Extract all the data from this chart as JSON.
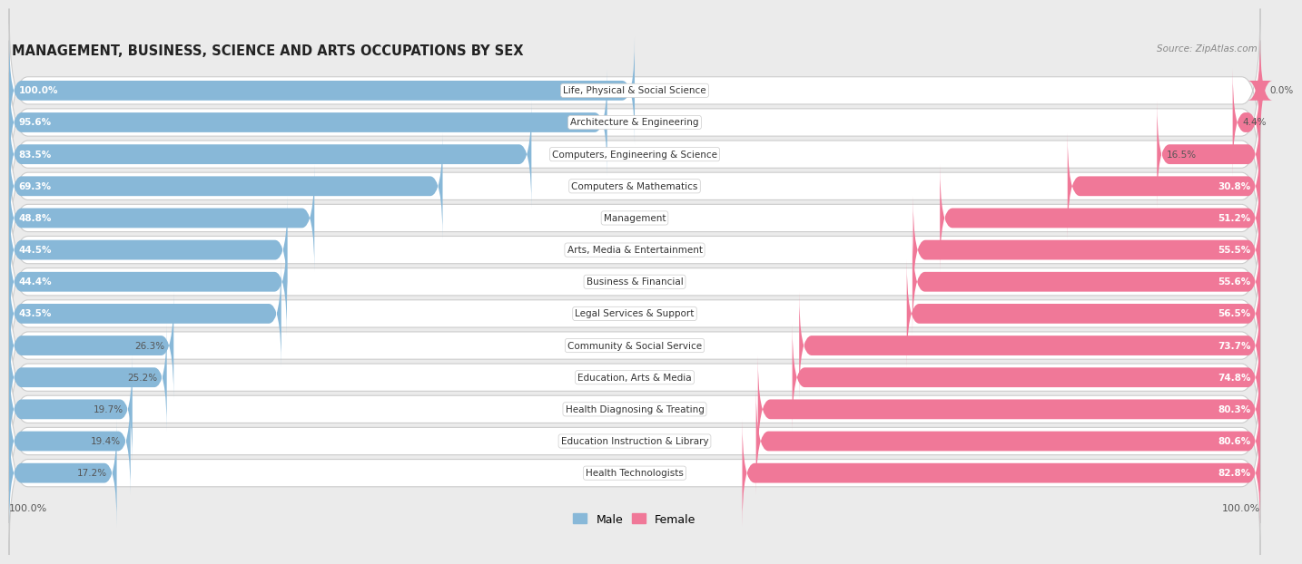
{
  "title": "MANAGEMENT, BUSINESS, SCIENCE AND ARTS OCCUPATIONS BY SEX",
  "source": "Source: ZipAtlas.com",
  "categories": [
    "Life, Physical & Social Science",
    "Architecture & Engineering",
    "Computers, Engineering & Science",
    "Computers & Mathematics",
    "Management",
    "Arts, Media & Entertainment",
    "Business & Financial",
    "Legal Services & Support",
    "Community & Social Service",
    "Education, Arts & Media",
    "Health Diagnosing & Treating",
    "Education Instruction & Library",
    "Health Technologists"
  ],
  "male": [
    100.0,
    95.6,
    83.5,
    69.3,
    48.8,
    44.5,
    44.4,
    43.5,
    26.3,
    25.2,
    19.7,
    19.4,
    17.2
  ],
  "female": [
    0.0,
    4.4,
    16.5,
    30.8,
    51.2,
    55.5,
    55.6,
    56.5,
    73.7,
    74.8,
    80.3,
    80.6,
    82.8
  ],
  "male_color": "#88b8d8",
  "female_color": "#f07898",
  "background_color": "#ebebeb",
  "row_bg_color": "#ffffff",
  "row_border_color": "#cccccc",
  "label_font_size": 7.5,
  "title_font_size": 10.5,
  "value_font_size": 7.5,
  "axis_label_font_size": 8.0
}
